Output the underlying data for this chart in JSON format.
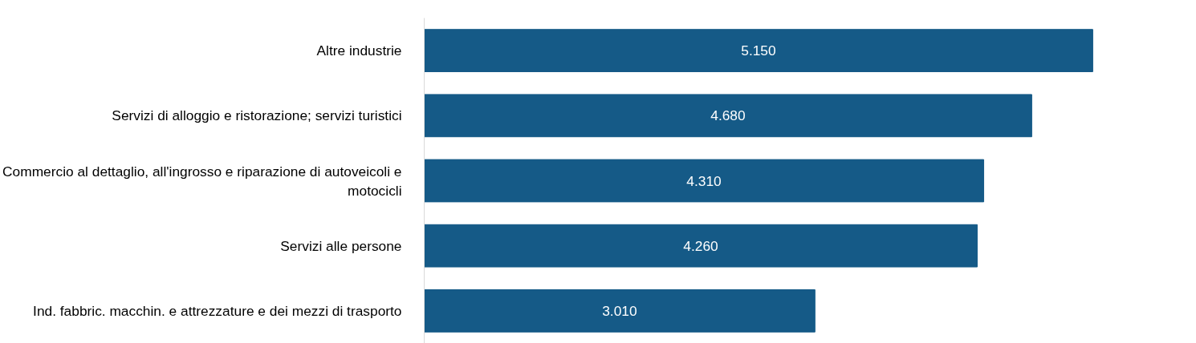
{
  "chart_data": {
    "type": "bar",
    "orientation": "horizontal",
    "categories": [
      "Altre industrie",
      "Servizi di alloggio e ristorazione; servizi turistici",
      "Commercio al dettaglio, all'ingrosso e riparazione di autoveicoli e motocicli",
      "Servizi alle persone",
      "Ind. fabbric. macchin. e attrezzature e dei mezzi di trasporto"
    ],
    "values": [
      5150,
      4680,
      4310,
      4260,
      3010
    ],
    "value_labels": [
      "5.150",
      "4.680",
      "4.310",
      "4.260",
      "3.010"
    ],
    "color": "#155a87",
    "tick_labels": "y",
    "grid": false
  }
}
